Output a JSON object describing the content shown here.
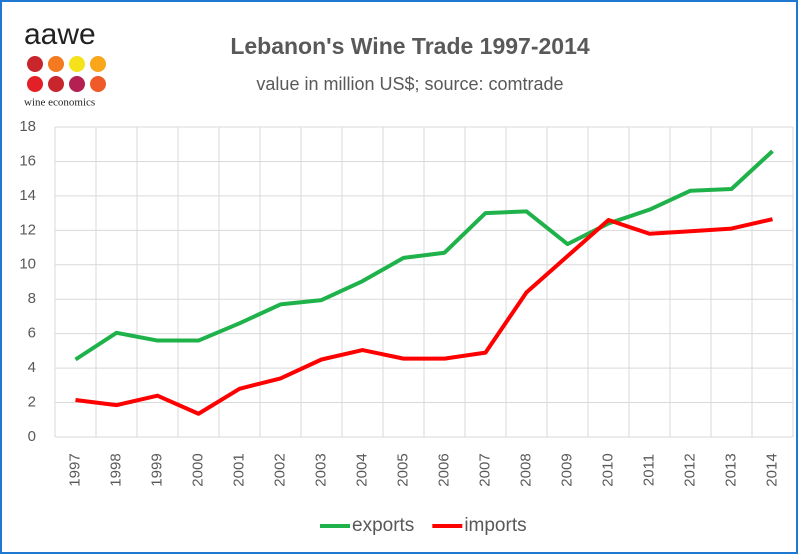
{
  "chart_data": {
    "type": "line",
    "title": "Lebanon's Wine Trade 1997-2014",
    "subtitle": "value in million US$; source: comtrade",
    "logo": "aawe",
    "logo_tagline": "wine economics",
    "categories": [
      "1997",
      "1998",
      "1999",
      "2000",
      "2001",
      "2002",
      "2003",
      "2004",
      "2005",
      "2006",
      "2007",
      "2008",
      "2009",
      "2010",
      "2011",
      "2012",
      "2013",
      "2014"
    ],
    "series": [
      {
        "name": "exports",
        "color": "#1fb24a",
        "values": [
          4.5,
          6.05,
          5.6,
          5.6,
          6.6,
          7.7,
          7.95,
          9.05,
          10.4,
          10.7,
          13.0,
          13.1,
          11.2,
          12.4,
          13.2,
          14.3,
          14.4,
          16.6
        ]
      },
      {
        "name": "imports",
        "color": "#ff0000",
        "values": [
          2.15,
          1.85,
          2.4,
          1.35,
          2.8,
          3.4,
          4.5,
          5.05,
          4.55,
          4.55,
          4.9,
          8.4,
          10.5,
          12.6,
          11.8,
          11.95,
          12.1,
          12.65
        ]
      }
    ],
    "ylim": [
      0,
      18
    ],
    "yticks": [
      0,
      2,
      4,
      6,
      8,
      10,
      12,
      14,
      16,
      18
    ],
    "grid": true,
    "legend": "bottom"
  }
}
